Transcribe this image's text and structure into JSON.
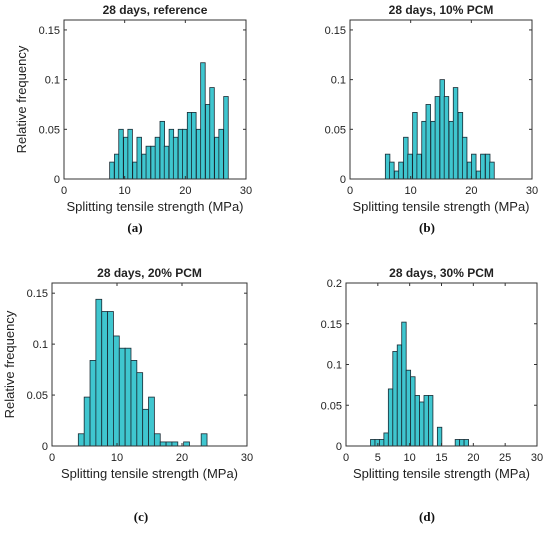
{
  "chart_data": [
    {
      "type": "bar",
      "title": "28 days, reference",
      "xlabel": "Splitting tensile strength (MPa)",
      "ylabel": "Relative frequency",
      "caption": "(a)",
      "xlim": [
        0,
        30
      ],
      "ylim": [
        0,
        0.16
      ],
      "xticks": [
        0,
        10,
        20,
        30
      ],
      "yticks": [
        0,
        0.05,
        0.1,
        0.15
      ],
      "ytick_labels": [
        "0",
        "0.05",
        "0.1",
        "0.15"
      ],
      "bin_width": 0.75,
      "x": [
        7.9,
        8.7,
        9.4,
        10.2,
        10.9,
        11.7,
        12.4,
        13.2,
        13.9,
        14.7,
        15.4,
        16.2,
        16.9,
        17.7,
        18.4,
        19.2,
        19.9,
        20.7,
        21.4,
        22.2,
        22.9,
        23.7,
        24.4,
        25.2,
        25.9,
        26.7
      ],
      "values": [
        0.017,
        0.025,
        0.05,
        0.042,
        0.05,
        0.017,
        0.042,
        0.025,
        0.033,
        0.033,
        0.042,
        0.058,
        0.033,
        0.05,
        0.042,
        0.05,
        0.05,
        0.067,
        0.067,
        0.05,
        0.117,
        0.075,
        0.092,
        0.042,
        0.05,
        0.083
      ]
    },
    {
      "type": "bar",
      "title": "28 days, 10% PCM",
      "xlabel": "Splitting tensile strength (MPa)",
      "ylabel": "",
      "caption": "(b)",
      "xlim": [
        0,
        30
      ],
      "ylim": [
        0,
        0.16
      ],
      "xticks": [
        0,
        10,
        20,
        30
      ],
      "yticks": [
        0,
        0.05,
        0.1,
        0.15
      ],
      "ytick_labels": [
        "0",
        "0.05",
        "0.1",
        "0.15"
      ],
      "bin_width": 0.75,
      "x": [
        6.2,
        6.9,
        7.7,
        8.4,
        9.2,
        9.9,
        10.7,
        11.4,
        12.2,
        12.9,
        13.7,
        14.4,
        15.2,
        15.9,
        16.7,
        17.4,
        18.2,
        18.9,
        19.7,
        20.4,
        21.2,
        21.9,
        22.7,
        23.4
      ],
      "values": [
        0.025,
        0.017,
        0.008,
        0.017,
        0.042,
        0.025,
        0.067,
        0.025,
        0.058,
        0.075,
        0.058,
        0.083,
        0.1,
        0.083,
        0.058,
        0.092,
        0.067,
        0.042,
        0.017,
        0.025,
        0.008,
        0.025,
        0.025,
        0.017
      ]
    },
    {
      "type": "bar",
      "title": "28 days, 20% PCM",
      "xlabel": "Splitting tensile strength (MPa)",
      "ylabel": "Relative frequency",
      "caption": "(c)",
      "xlim": [
        0,
        30
      ],
      "ylim": [
        0,
        0.16
      ],
      "xticks": [
        0,
        10,
        20,
        30
      ],
      "yticks": [
        0,
        0.05,
        0.1,
        0.15
      ],
      "ytick_labels": [
        "0",
        "0.05",
        "0.1",
        "0.15"
      ],
      "bin_width": 0.9,
      "x": [
        4.5,
        5.4,
        6.3,
        7.2,
        8.1,
        9.0,
        9.9,
        10.8,
        11.7,
        12.6,
        13.5,
        14.4,
        15.3,
        16.2,
        17.1,
        18.0,
        18.9,
        20.7,
        23.4
      ],
      "values": [
        0.012,
        0.048,
        0.084,
        0.144,
        0.132,
        0.132,
        0.108,
        0.096,
        0.096,
        0.084,
        0.072,
        0.036,
        0.048,
        0.012,
        0.004,
        0.004,
        0.004,
        0.004,
        0.012
      ]
    },
    {
      "type": "bar",
      "title": "28 days, 30% PCM",
      "xlabel": "Splitting tensile strength (MPa)",
      "ylabel": "",
      "caption": "(d)",
      "xlim": [
        0,
        30
      ],
      "ylim": [
        0,
        0.2
      ],
      "xticks": [
        0,
        5,
        10,
        15,
        20,
        25,
        30
      ],
      "yticks": [
        0,
        0.05,
        0.1,
        0.15,
        0.2
      ],
      "ytick_labels": [
        "0",
        "0.05",
        "0.1",
        "0.15",
        "0.2"
      ],
      "bin_width": 0.7,
      "x": [
        4.2,
        4.9,
        5.6,
        6.3,
        7.0,
        7.7,
        8.4,
        9.1,
        9.8,
        10.5,
        11.2,
        11.9,
        12.6,
        13.3,
        14.7,
        17.5,
        18.2,
        18.9
      ],
      "values": [
        0.008,
        0.008,
        0.008,
        0.016,
        0.07,
        0.116,
        0.124,
        0.152,
        0.093,
        0.085,
        0.062,
        0.054,
        0.062,
        0.062,
        0.023,
        0.008,
        0.008,
        0.008
      ]
    }
  ]
}
